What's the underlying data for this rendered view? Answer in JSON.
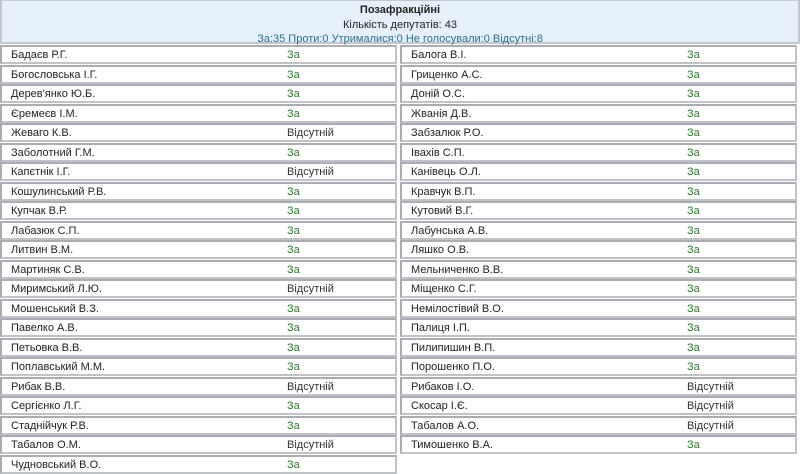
{
  "header": {
    "title": "Позафракційні",
    "count": "Кількість депутатів: 43",
    "stats": "За:35 Проти:0 Утрималися:0 Не голосували:0 Відсутні:8"
  },
  "colors": {
    "vote_for": "#2d7a2d",
    "absent": "#333333",
    "header_bg": "#e6f0fa"
  },
  "left": [
    {
      "name": "Бадаєв Р.Г.",
      "vote": "За"
    },
    {
      "name": "Богословська І.Г.",
      "vote": "За"
    },
    {
      "name": "Дерев'янко Ю.Б.",
      "vote": "За"
    },
    {
      "name": "Єремеєв І.М.",
      "vote": "За"
    },
    {
      "name": "Жеваго К.В.",
      "vote": "Відсутній"
    },
    {
      "name": "Заболотний Г.М.",
      "vote": "За"
    },
    {
      "name": "Капєтнік І.Г.",
      "vote": "Відсутній"
    },
    {
      "name": "Кошулинський Р.В.",
      "vote": "За"
    },
    {
      "name": "Купчак В.Р.",
      "vote": "За"
    },
    {
      "name": "Лабазюк С.П.",
      "vote": "За"
    },
    {
      "name": "Литвин В.М.",
      "vote": "За"
    },
    {
      "name": "Мартиняк С.В.",
      "vote": "За"
    },
    {
      "name": "Миримський Л.Ю.",
      "vote": "Відсутній"
    },
    {
      "name": "Мошенський В.З.",
      "vote": "За"
    },
    {
      "name": "Павелко А.В.",
      "vote": "За"
    },
    {
      "name": "Петьовка В.В.",
      "vote": "За"
    },
    {
      "name": "Поплавський М.М.",
      "vote": "За"
    },
    {
      "name": "Рибак В.В.",
      "vote": "Відсутній"
    },
    {
      "name": "Сергієнко Л.Г.",
      "vote": "За"
    },
    {
      "name": "Стаднійчук Р.В.",
      "vote": "За"
    },
    {
      "name": "Табалов О.М.",
      "vote": "Відсутній"
    },
    {
      "name": "Чудновський В.О.",
      "vote": "За"
    }
  ],
  "right": [
    {
      "name": "Балога В.І.",
      "vote": "За"
    },
    {
      "name": "Гриценко А.С.",
      "vote": "За"
    },
    {
      "name": "Доній О.С.",
      "vote": "За"
    },
    {
      "name": "Жванія Д.В.",
      "vote": "За"
    },
    {
      "name": "Забзалюк Р.О.",
      "vote": "За"
    },
    {
      "name": "Іваxів С.П.",
      "vote": "За"
    },
    {
      "name": "Канівець О.Л.",
      "vote": "За"
    },
    {
      "name": "Кравчук В.П.",
      "vote": "За"
    },
    {
      "name": "Кутовий В.Г.",
      "vote": "За"
    },
    {
      "name": "Лабунська А.В.",
      "vote": "За"
    },
    {
      "name": "Ляшко О.В.",
      "vote": "За"
    },
    {
      "name": "Мельниченко В.В.",
      "vote": "За"
    },
    {
      "name": "Міщенко С.Г.",
      "vote": "За"
    },
    {
      "name": "Немілостівий В.О.",
      "vote": "За"
    },
    {
      "name": "Палиця І.П.",
      "vote": "За"
    },
    {
      "name": "Пилипишин В.П.",
      "vote": "За"
    },
    {
      "name": "Порошенко П.О.",
      "vote": "За"
    },
    {
      "name": "Рибаков І.О.",
      "vote": "Відсутній"
    },
    {
      "name": "Скосар І.Є.",
      "vote": "Відсутній"
    },
    {
      "name": "Табалов А.О.",
      "vote": "Відсутній"
    },
    {
      "name": "Тимошенко В.А.",
      "vote": "За"
    }
  ]
}
